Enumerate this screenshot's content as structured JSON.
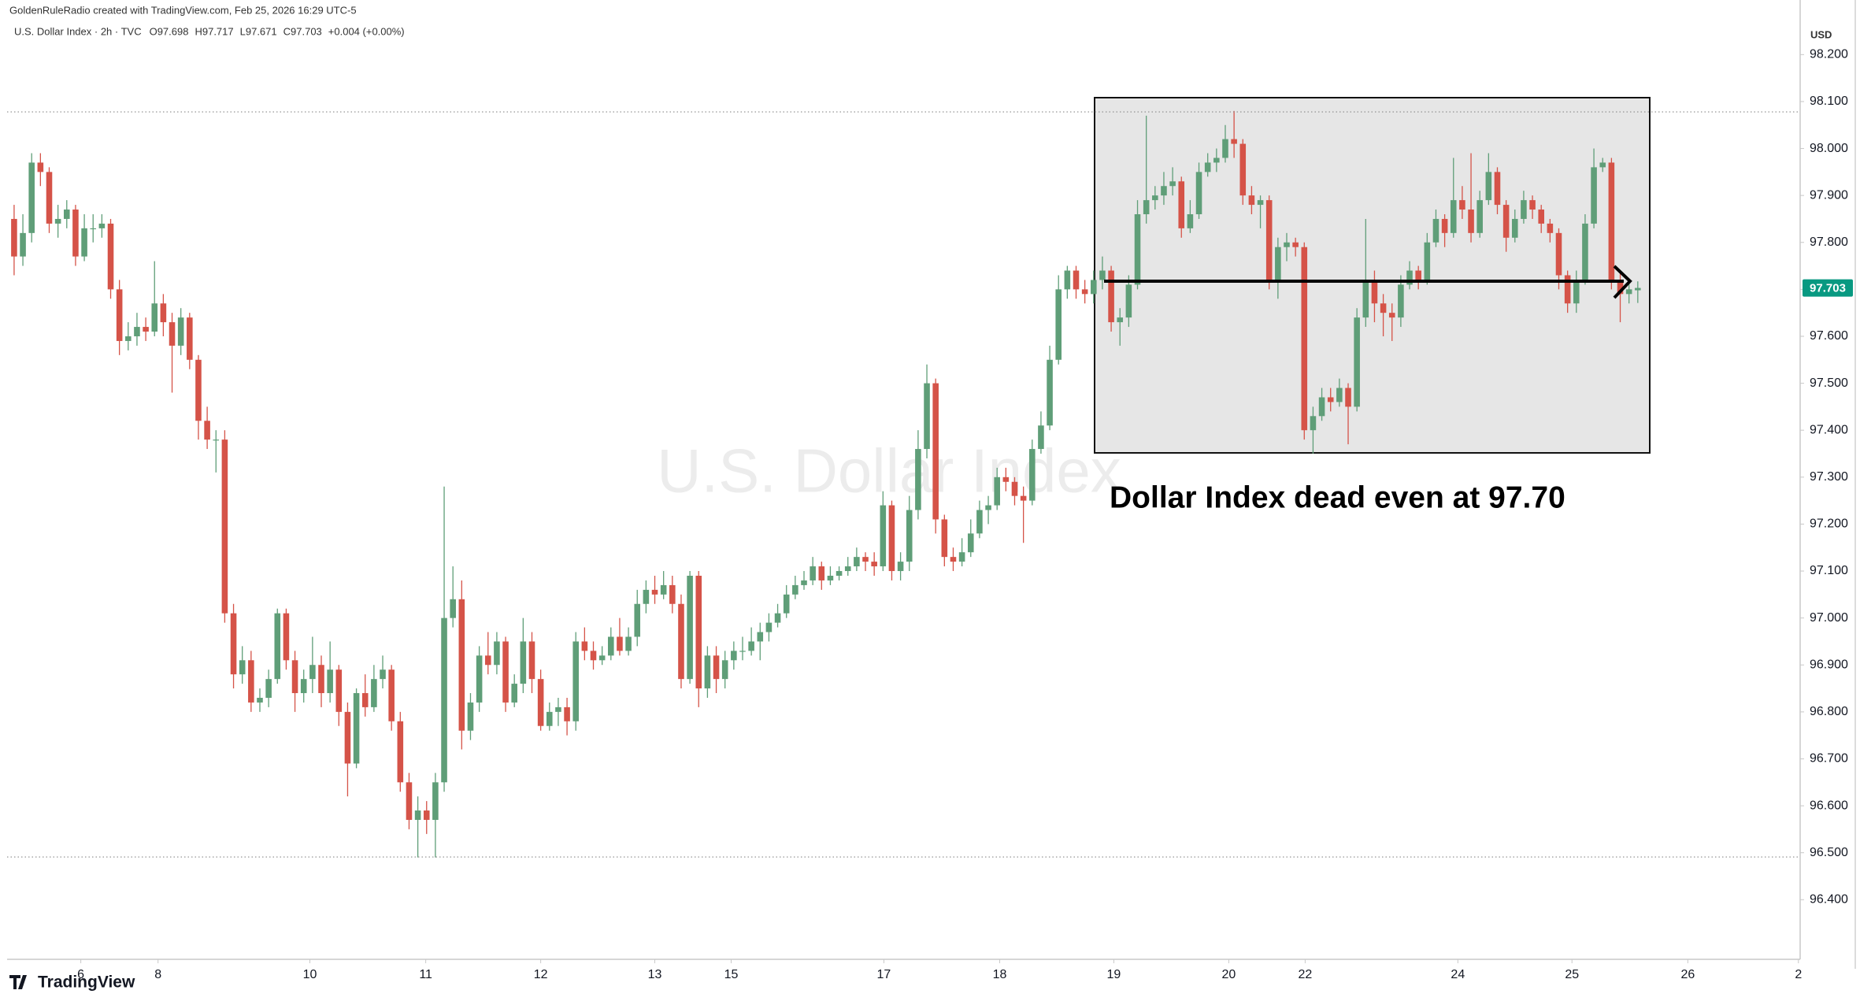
{
  "chart_data": {
    "type": "candlestick",
    "credit": "GoldenRuleRadio created with TradingView.com, Feb 25, 2026 16:29 UTC-5",
    "symbol": "U.S. Dollar Index · 2h · TVC",
    "legend_values": [
      "O97.698",
      "H97.717",
      "L97.671",
      "C97.703",
      "+0.004 (+0.00%)"
    ],
    "watermark": "U.S. Dollar Index",
    "annotation": "Dollar Index dead even at 97.70",
    "currency": "USD",
    "brand": "TradingView",
    "up_color": "#5f9e78",
    "down_color": "#d55348",
    "grid": false,
    "ohlc": [
      [
        97.85,
        97.88,
        97.73,
        97.77
      ],
      [
        97.77,
        97.86,
        97.75,
        97.82
      ],
      [
        97.82,
        97.99,
        97.8,
        97.97
      ],
      [
        97.97,
        97.99,
        97.92,
        97.95
      ],
      [
        97.95,
        97.96,
        97.82,
        97.84
      ],
      [
        97.84,
        97.88,
        97.81,
        97.85
      ],
      [
        97.85,
        97.89,
        97.83,
        97.87
      ],
      [
        97.87,
        97.88,
        97.75,
        97.77
      ],
      [
        97.77,
        97.86,
        97.76,
        97.83
      ],
      [
        97.83,
        97.86,
        97.8,
        97.83
      ],
      [
        97.83,
        97.86,
        97.81,
        97.84
      ],
      [
        97.84,
        97.85,
        97.68,
        97.7
      ],
      [
        97.7,
        97.72,
        97.56,
        97.59
      ],
      [
        97.59,
        97.63,
        97.57,
        97.6
      ],
      [
        97.6,
        97.65,
        97.58,
        97.62
      ],
      [
        97.62,
        97.64,
        97.59,
        97.61
      ],
      [
        97.61,
        97.76,
        97.6,
        97.67
      ],
      [
        97.67,
        97.69,
        97.6,
        97.63
      ],
      [
        97.63,
        97.65,
        97.48,
        97.58
      ],
      [
        97.58,
        97.66,
        97.56,
        97.64
      ],
      [
        97.64,
        97.65,
        97.53,
        97.55
      ],
      [
        97.55,
        97.56,
        97.38,
        97.42
      ],
      [
        97.42,
        97.45,
        97.36,
        97.38
      ],
      [
        97.38,
        97.4,
        97.31,
        97.38
      ],
      [
        97.38,
        97.4,
        96.99,
        97.01
      ],
      [
        97.01,
        97.03,
        96.85,
        96.88
      ],
      [
        96.88,
        96.94,
        96.86,
        96.91
      ],
      [
        96.91,
        96.93,
        96.8,
        96.82
      ],
      [
        96.82,
        96.85,
        96.8,
        96.83
      ],
      [
        96.83,
        96.89,
        96.81,
        96.87
      ],
      [
        96.87,
        97.02,
        96.86,
        97.01
      ],
      [
        97.01,
        97.02,
        96.89,
        96.91
      ],
      [
        96.91,
        96.93,
        96.8,
        96.84
      ],
      [
        96.84,
        96.89,
        96.82,
        96.87
      ],
      [
        96.87,
        96.96,
        96.84,
        96.9
      ],
      [
        96.9,
        96.92,
        96.81,
        96.84
      ],
      [
        96.84,
        96.95,
        96.82,
        96.89
      ],
      [
        96.89,
        96.9,
        96.77,
        96.8
      ],
      [
        96.8,
        96.82,
        96.62,
        96.69
      ],
      [
        96.69,
        96.85,
        96.68,
        96.84
      ],
      [
        96.84,
        96.88,
        96.79,
        96.81
      ],
      [
        96.81,
        96.9,
        96.8,
        96.87
      ],
      [
        96.87,
        96.92,
        96.85,
        96.89
      ],
      [
        96.89,
        96.9,
        96.76,
        96.78
      ],
      [
        96.78,
        96.8,
        96.63,
        96.65
      ],
      [
        96.65,
        96.67,
        96.55,
        96.57
      ],
      [
        96.57,
        96.62,
        96.49,
        96.59
      ],
      [
        96.59,
        96.61,
        96.54,
        96.57
      ],
      [
        96.57,
        96.67,
        96.49,
        96.65
      ],
      [
        96.65,
        97.28,
        96.63,
        97.0
      ],
      [
        97.0,
        97.11,
        96.98,
        97.04
      ],
      [
        97.04,
        97.08,
        96.72,
        96.76
      ],
      [
        96.76,
        96.84,
        96.74,
        96.82
      ],
      [
        96.82,
        96.94,
        96.8,
        96.92
      ],
      [
        96.92,
        96.97,
        96.88,
        96.9
      ],
      [
        96.9,
        96.97,
        96.88,
        96.95
      ],
      [
        96.95,
        96.96,
        96.8,
        96.82
      ],
      [
        96.82,
        96.88,
        96.81,
        96.86
      ],
      [
        96.86,
        97.0,
        96.84,
        96.95
      ],
      [
        96.95,
        96.97,
        96.84,
        96.87
      ],
      [
        96.87,
        96.89,
        96.76,
        96.77
      ],
      [
        96.77,
        96.82,
        96.76,
        96.8
      ],
      [
        96.8,
        96.83,
        96.77,
        96.81
      ],
      [
        96.81,
        96.83,
        96.75,
        96.78
      ],
      [
        96.78,
        96.97,
        96.76,
        96.95
      ],
      [
        96.95,
        96.98,
        96.91,
        96.93
      ],
      [
        96.93,
        96.95,
        96.89,
        96.91
      ],
      [
        96.91,
        96.94,
        96.9,
        96.92
      ],
      [
        96.92,
        96.98,
        96.91,
        96.96
      ],
      [
        96.96,
        97.0,
        96.92,
        96.93
      ],
      [
        96.93,
        96.98,
        96.92,
        96.96
      ],
      [
        96.96,
        97.06,
        96.94,
        97.03
      ],
      [
        97.03,
        97.08,
        97.01,
        97.06
      ],
      [
        97.06,
        97.09,
        97.03,
        97.05
      ],
      [
        97.05,
        97.1,
        97.04,
        97.07
      ],
      [
        97.07,
        97.09,
        97.01,
        97.03
      ],
      [
        97.03,
        97.05,
        96.85,
        96.87
      ],
      [
        96.87,
        97.1,
        96.86,
        97.09
      ],
      [
        97.09,
        97.1,
        96.81,
        96.85
      ],
      [
        96.85,
        96.94,
        96.83,
        96.92
      ],
      [
        96.92,
        96.94,
        96.84,
        96.87
      ],
      [
        96.87,
        96.93,
        96.85,
        96.91
      ],
      [
        96.91,
        96.95,
        96.89,
        96.93
      ],
      [
        96.93,
        96.96,
        96.91,
        96.93
      ],
      [
        96.93,
        96.98,
        96.92,
        96.95
      ],
      [
        96.95,
        96.99,
        96.91,
        96.97
      ],
      [
        96.97,
        97.01,
        96.95,
        96.99
      ],
      [
        96.99,
        97.03,
        96.98,
        97.01
      ],
      [
        97.01,
        97.07,
        97.0,
        97.05
      ],
      [
        97.05,
        97.09,
        97.04,
        97.07
      ],
      [
        97.07,
        97.1,
        97.06,
        97.08
      ],
      [
        97.08,
        97.13,
        97.07,
        97.11
      ],
      [
        97.11,
        97.12,
        97.06,
        97.08
      ],
      [
        97.08,
        97.11,
        97.07,
        97.09
      ],
      [
        97.09,
        97.11,
        97.08,
        97.1
      ],
      [
        97.1,
        97.13,
        97.09,
        97.11
      ],
      [
        97.11,
        97.15,
        97.1,
        97.13
      ],
      [
        97.13,
        97.14,
        97.1,
        97.12
      ],
      [
        97.12,
        97.14,
        97.09,
        97.11
      ],
      [
        97.11,
        97.27,
        97.1,
        97.24
      ],
      [
        97.24,
        97.25,
        97.08,
        97.1
      ],
      [
        97.1,
        97.14,
        97.08,
        97.12
      ],
      [
        97.12,
        97.26,
        97.1,
        97.23
      ],
      [
        97.23,
        97.4,
        97.21,
        97.36
      ],
      [
        97.36,
        97.54,
        97.34,
        97.5
      ],
      [
        97.5,
        97.51,
        97.18,
        97.21
      ],
      [
        97.21,
        97.22,
        97.11,
        97.13
      ],
      [
        97.13,
        97.15,
        97.1,
        97.12
      ],
      [
        97.12,
        97.17,
        97.11,
        97.14
      ],
      [
        97.14,
        97.21,
        97.13,
        97.18
      ],
      [
        97.18,
        97.25,
        97.17,
        97.23
      ],
      [
        97.23,
        97.26,
        97.2,
        97.24
      ],
      [
        97.24,
        97.32,
        97.23,
        97.3
      ],
      [
        97.3,
        97.32,
        97.27,
        97.29
      ],
      [
        97.29,
        97.3,
        97.24,
        97.26
      ],
      [
        97.26,
        97.28,
        97.16,
        97.25
      ],
      [
        97.25,
        97.38,
        97.24,
        97.36
      ],
      [
        97.36,
        97.44,
        97.35,
        97.41
      ],
      [
        97.41,
        97.58,
        97.4,
        97.55
      ],
      [
        97.55,
        97.73,
        97.54,
        97.7
      ],
      [
        97.7,
        97.75,
        97.68,
        97.74
      ],
      [
        97.74,
        97.75,
        97.68,
        97.7
      ],
      [
        97.7,
        97.72,
        97.67,
        97.69
      ],
      [
        97.69,
        97.74,
        97.67,
        97.72
      ],
      [
        97.72,
        97.77,
        97.7,
        97.74
      ],
      [
        97.74,
        97.75,
        97.61,
        97.63
      ],
      [
        97.63,
        97.66,
        97.58,
        97.64
      ],
      [
        97.64,
        97.73,
        97.62,
        97.71
      ],
      [
        97.71,
        97.89,
        97.7,
        97.86
      ],
      [
        97.86,
        98.07,
        97.84,
        97.89
      ],
      [
        97.89,
        97.92,
        97.87,
        97.9
      ],
      [
        97.9,
        97.95,
        97.88,
        97.92
      ],
      [
        97.92,
        97.96,
        97.9,
        97.93
      ],
      [
        97.93,
        97.94,
        97.81,
        97.83
      ],
      [
        97.83,
        97.89,
        97.82,
        97.86
      ],
      [
        97.86,
        97.97,
        97.85,
        97.95
      ],
      [
        97.95,
        97.99,
        97.94,
        97.97
      ],
      [
        97.97,
        98.0,
        97.95,
        97.98
      ],
      [
        97.98,
        98.05,
        97.97,
        98.02
      ],
      [
        98.02,
        98.08,
        97.98,
        98.01
      ],
      [
        98.01,
        98.02,
        97.88,
        97.9
      ],
      [
        97.9,
        97.92,
        97.86,
        97.88
      ],
      [
        97.88,
        97.9,
        97.83,
        97.89
      ],
      [
        97.89,
        97.9,
        97.7,
        97.72
      ],
      [
        97.72,
        97.81,
        97.68,
        97.79
      ],
      [
        97.79,
        97.82,
        97.76,
        97.8
      ],
      [
        97.8,
        97.81,
        97.77,
        97.79
      ],
      [
        97.79,
        97.8,
        97.38,
        97.4
      ],
      [
        97.4,
        97.45,
        97.35,
        97.43
      ],
      [
        97.43,
        97.49,
        97.42,
        97.47
      ],
      [
        97.47,
        97.49,
        97.44,
        97.46
      ],
      [
        97.46,
        97.51,
        97.45,
        97.49
      ],
      [
        97.49,
        97.5,
        97.37,
        97.45
      ],
      [
        97.45,
        97.66,
        97.44,
        97.64
      ],
      [
        97.64,
        97.85,
        97.62,
        97.72
      ],
      [
        97.72,
        97.74,
        97.63,
        97.67
      ],
      [
        97.67,
        97.69,
        97.6,
        97.65
      ],
      [
        97.65,
        97.67,
        97.59,
        97.64
      ],
      [
        97.64,
        97.73,
        97.62,
        97.71
      ],
      [
        97.71,
        97.76,
        97.7,
        97.74
      ],
      [
        97.74,
        97.75,
        97.7,
        97.72
      ],
      [
        97.72,
        97.82,
        97.71,
        97.8
      ],
      [
        97.8,
        97.87,
        97.79,
        97.85
      ],
      [
        97.85,
        97.86,
        97.79,
        97.82
      ],
      [
        97.82,
        97.98,
        97.81,
        97.89
      ],
      [
        97.89,
        97.92,
        97.85,
        97.87
      ],
      [
        97.87,
        97.99,
        97.8,
        97.82
      ],
      [
        97.82,
        97.91,
        97.81,
        97.89
      ],
      [
        97.89,
        97.99,
        97.88,
        97.95
      ],
      [
        97.95,
        97.96,
        97.86,
        97.88
      ],
      [
        97.88,
        97.89,
        97.78,
        97.81
      ],
      [
        97.81,
        97.87,
        97.8,
        97.85
      ],
      [
        97.85,
        97.91,
        97.84,
        97.89
      ],
      [
        97.89,
        97.9,
        97.85,
        97.87
      ],
      [
        97.87,
        97.88,
        97.82,
        97.84
      ],
      [
        97.84,
        97.85,
        97.8,
        97.82
      ],
      [
        97.82,
        97.83,
        97.7,
        97.73
      ],
      [
        97.73,
        97.74,
        97.65,
        97.67
      ],
      [
        97.67,
        97.74,
        97.65,
        97.72
      ],
      [
        97.72,
        97.86,
        97.71,
        97.84
      ],
      [
        97.84,
        98.0,
        97.83,
        97.96
      ],
      [
        97.96,
        97.98,
        97.95,
        97.97
      ],
      [
        97.97,
        97.98,
        97.7,
        97.72
      ],
      [
        97.72,
        97.74,
        97.63,
        97.69
      ],
      [
        97.69,
        97.72,
        97.67,
        97.7
      ],
      [
        97.698,
        97.717,
        97.671,
        97.703
      ]
    ],
    "xlim": [
      -0.8,
      203.5
    ],
    "xticks": [
      {
        "value": 7.6,
        "label": "6"
      },
      {
        "value": 16.4,
        "label": "8"
      },
      {
        "value": 33.7,
        "label": "10"
      },
      {
        "value": 46.9,
        "label": "11"
      },
      {
        "value": 60.0,
        "label": "12"
      },
      {
        "value": 73.0,
        "label": "13"
      },
      {
        "value": 81.7,
        "label": "15"
      },
      {
        "value": 99.1,
        "label": "17"
      },
      {
        "value": 112.3,
        "label": "18"
      },
      {
        "value": 125.3,
        "label": "19"
      },
      {
        "value": 138.4,
        "label": "20"
      },
      {
        "value": 147.1,
        "label": "22"
      },
      {
        "value": 164.5,
        "label": "24"
      },
      {
        "value": 177.5,
        "label": "25"
      },
      {
        "value": 190.7,
        "label": "26"
      },
      {
        "value": 203.3,
        "label": "2"
      }
    ],
    "ylim": [
      96.273,
      98.271
    ],
    "yticks": [
      {
        "value": 96.4,
        "label": "96.400"
      },
      {
        "value": 96.5,
        "label": "96.500"
      },
      {
        "value": 96.6,
        "label": "96.600"
      },
      {
        "value": 96.7,
        "label": "96.700"
      },
      {
        "value": 96.8,
        "label": "96.800"
      },
      {
        "value": 96.9,
        "label": "96.900"
      },
      {
        "value": 97.0,
        "label": "97.000"
      },
      {
        "value": 97.1,
        "label": "97.100"
      },
      {
        "value": 97.2,
        "label": "97.200"
      },
      {
        "value": 97.3,
        "label": "97.300"
      },
      {
        "value": 97.4,
        "label": "97.400"
      },
      {
        "value": 97.5,
        "label": "97.500"
      },
      {
        "value": 97.6,
        "label": "97.600"
      },
      {
        "value": 97.7,
        "label": "97.700"
      },
      {
        "value": 97.8,
        "label": "97.800"
      },
      {
        "value": 97.9,
        "label": "97.900"
      },
      {
        "value": 98.0,
        "label": "98.000"
      },
      {
        "value": 98.1,
        "label": "98.100"
      },
      {
        "value": 98.2,
        "label": "98.200"
      }
    ],
    "reference_lines": [
      98.078,
      96.491
    ],
    "last_price": {
      "value": 97.703,
      "label": "97.703",
      "color": "#089981"
    }
  }
}
